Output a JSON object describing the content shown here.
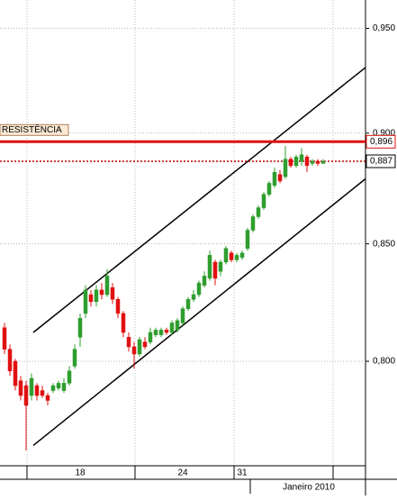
{
  "chart_data": {
    "type": "candlestick",
    "categories": [
      null,
      null,
      null,
      null,
      null,
      null,
      null,
      null,
      null,
      null,
      null,
      null,
      null,
      null,
      "18",
      null,
      null,
      null,
      null,
      null,
      null,
      null,
      null,
      null,
      null,
      null,
      null,
      null,
      null,
      null,
      null,
      null,
      null,
      "24",
      null,
      null,
      null,
      null,
      null,
      null,
      null,
      null,
      null,
      null,
      "31",
      null,
      null,
      null,
      null,
      null,
      null,
      null,
      null,
      null,
      null,
      null,
      null,
      null,
      null,
      null
    ],
    "x_label": "Janeiro 2010",
    "open": [
      0.814,
      0.805,
      0.8,
      0.792,
      0.79,
      0.786,
      0.79,
      0.788,
      0.786,
      0.788,
      0.789,
      0.788,
      0.791,
      0.798,
      0.81,
      0.82,
      0.828,
      0.825,
      0.83,
      0.828,
      0.831,
      0.826,
      0.82,
      0.81,
      0.806,
      0.803,
      0.808,
      0.808,
      0.811,
      0.811,
      0.813,
      0.812,
      0.813,
      0.816,
      0.822,
      0.826,
      0.828,
      0.832,
      0.835,
      0.842,
      0.838,
      0.842,
      0.846,
      0.843,
      0.844,
      0.848,
      0.856,
      0.862,
      0.866,
      0.872,
      0.876,
      0.881,
      0.88,
      0.888,
      0.885,
      0.887,
      0.889,
      0.886,
      0.887,
      0.886
    ],
    "high": [
      0.816,
      0.807,
      0.801,
      0.794,
      0.792,
      0.795,
      0.791,
      0.79,
      0.787,
      0.791,
      0.792,
      0.793,
      0.798,
      0.807,
      0.82,
      0.832,
      0.83,
      0.832,
      0.833,
      0.839,
      0.833,
      0.827,
      0.821,
      0.812,
      0.808,
      0.81,
      0.81,
      0.814,
      0.814,
      0.814,
      0.814,
      0.817,
      0.818,
      0.823,
      0.827,
      0.83,
      0.834,
      0.838,
      0.847,
      0.843,
      0.843,
      0.849,
      0.847,
      0.846,
      0.847,
      0.857,
      0.863,
      0.867,
      0.873,
      0.878,
      0.884,
      0.883,
      0.894,
      0.889,
      0.89,
      0.893,
      0.89,
      0.888,
      0.888,
      0.888
    ],
    "low": [
      0.803,
      0.794,
      0.788,
      0.784,
      0.764,
      0.784,
      0.784,
      0.785,
      0.782,
      0.787,
      0.788,
      0.787,
      0.79,
      0.797,
      0.806,
      0.818,
      0.823,
      0.823,
      0.826,
      0.827,
      0.824,
      0.818,
      0.81,
      0.804,
      0.797,
      0.802,
      0.805,
      0.807,
      0.81,
      0.81,
      0.811,
      0.811,
      0.812,
      0.815,
      0.821,
      0.825,
      0.827,
      0.831,
      0.834,
      0.832,
      0.836,
      0.841,
      0.842,
      0.842,
      0.843,
      0.847,
      0.855,
      0.861,
      0.865,
      0.871,
      0.875,
      0.877,
      0.879,
      0.884,
      0.884,
      0.885,
      0.882,
      0.885,
      0.885,
      0.886
    ],
    "close": [
      0.805,
      0.796,
      0.79,
      0.786,
      0.782,
      0.793,
      0.786,
      0.786,
      0.784,
      0.79,
      0.791,
      0.791,
      0.796,
      0.805,
      0.818,
      0.83,
      0.825,
      0.83,
      0.828,
      0.836,
      0.826,
      0.82,
      0.812,
      0.806,
      0.803,
      0.809,
      0.806,
      0.812,
      0.813,
      0.813,
      0.812,
      0.816,
      0.817,
      0.822,
      0.826,
      0.828,
      0.833,
      0.836,
      0.845,
      0.835,
      0.842,
      0.848,
      0.843,
      0.845,
      0.846,
      0.856,
      0.862,
      0.866,
      0.872,
      0.877,
      0.882,
      0.878,
      0.888,
      0.885,
      0.889,
      0.89,
      0.885,
      0.887,
      0.886,
      0.887
    ],
    "up_color": "#2e9e2e",
    "down_color": "#e01010",
    "log_scale": true,
    "ylim": [
      0.758,
      0.964
    ],
    "yticks": [
      {
        "value": 0.95,
        "label": "0,950"
      },
      {
        "value": 0.9,
        "label": "0,900"
      },
      {
        "value": 0.85,
        "label": "0,850"
      },
      {
        "value": 0.8,
        "label": "0,800"
      }
    ],
    "grid": true,
    "trendlines": [
      {
        "x": [
          5.33,
          66.83
        ],
        "values": [
          0.812,
          0.931
        ]
      },
      {
        "x": [
          5.33,
          66.83
        ],
        "values": [
          0.766,
          0.879
        ]
      }
    ],
    "levels": [
      {
        "name": "RESISTÊNCIA",
        "value": 0.896,
        "label": "0,896",
        "color": "#e01010",
        "style": "solid"
      },
      {
        "value": 0.887,
        "label": "0,887",
        "color": "#c00000",
        "style": "dotted"
      }
    ]
  }
}
